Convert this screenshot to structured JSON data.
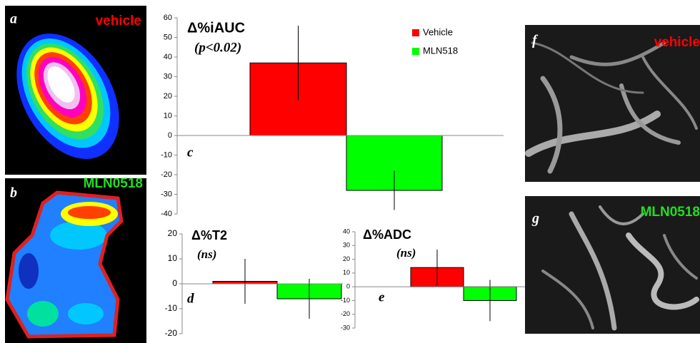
{
  "panels": [
    {
      "label": "a",
      "caption": "vehicle"
    },
    {
      "label": "b",
      "caption": "MLN0518"
    },
    {
      "label": "f",
      "caption": "vehicle"
    },
    {
      "label": "g",
      "caption": "MLN0518"
    }
  ],
  "chart_data": [
    {
      "type": "bar",
      "panel_label": "c",
      "title": "Δ%iAUC",
      "subtitle": "(p<0.02)",
      "ylim": [
        -40,
        60
      ],
      "yticks": [
        -40,
        -30,
        -20,
        -10,
        0,
        10,
        20,
        30,
        40,
        50,
        60
      ],
      "legend": "top-right",
      "series": [
        {
          "name": "Vehicle",
          "color": "#ff0000",
          "values": [
            37
          ],
          "errors": [
            19
          ]
        },
        {
          "name": "MLN518",
          "color": "#00ff00",
          "values": [
            -28
          ],
          "errors": [
            10
          ]
        }
      ]
    },
    {
      "type": "bar",
      "panel_label": "d",
      "title": "Δ%T2",
      "subtitle": "(ns)",
      "ylim": [
        -20,
        20
      ],
      "yticks": [
        -20,
        -10,
        0,
        10,
        20
      ],
      "series": [
        {
          "color": "#ff0000",
          "values": [
            1
          ],
          "errors": [
            9
          ]
        },
        {
          "color": "#00ff00",
          "values": [
            -6
          ],
          "errors": [
            8
          ]
        }
      ]
    },
    {
      "type": "bar",
      "panel_label": "e",
      "title": "Δ%ADC",
      "subtitle": "(ns)",
      "ylim": [
        -30,
        40
      ],
      "yticks": [
        -30,
        -20,
        -10,
        0,
        10,
        20,
        30,
        40
      ],
      "series": [
        {
          "color": "#ff0000",
          "values": [
            14
          ],
          "errors": [
            13
          ]
        },
        {
          "color": "#00ff00",
          "values": [
            -10
          ],
          "errors": [
            15
          ]
        }
      ]
    }
  ]
}
